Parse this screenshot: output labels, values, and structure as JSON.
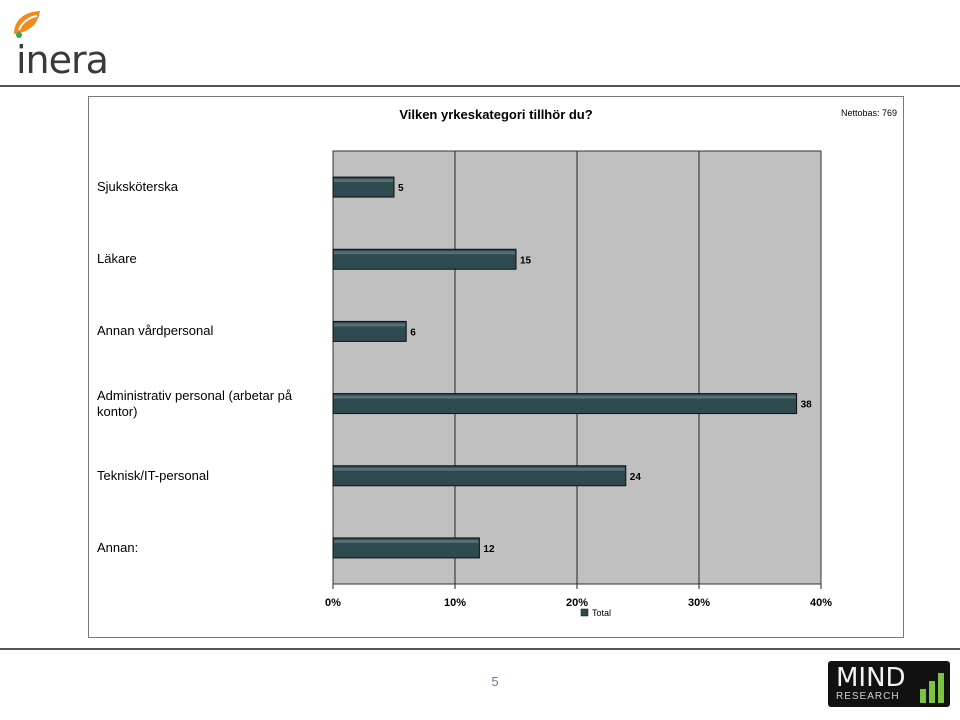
{
  "header": {
    "logo_text": "inera"
  },
  "footer": {
    "page_number": "5",
    "brand_main": "MIND",
    "brand_sub": "RESEARCH"
  },
  "colors": {
    "bar": "#2f4a4e",
    "plot_bg": "#c0c0c0",
    "accent_blue": "#5b7fa8",
    "logo_orange": "#f08a1c",
    "logo_green": "#3aa55d"
  },
  "chart_data": {
    "type": "bar",
    "orientation": "horizontal",
    "title": "Vilken yrkeskategori tillhör du?",
    "base_note": "Nettobas: 769",
    "categories": [
      "Sjuksköterska",
      "Läkare",
      "Annan vårdpersonal",
      "Administrativ personal (arbetar på kontor)",
      "Teknisk/IT-personal",
      "Annan:"
    ],
    "series": [
      {
        "name": "Total",
        "values": [
          5,
          15,
          6,
          38,
          24,
          12
        ]
      }
    ],
    "x_ticks": [
      "0%",
      "10%",
      "20%",
      "30%",
      "40%"
    ],
    "xlim": [
      0,
      40
    ],
    "grid": true,
    "legend": "bottom"
  }
}
